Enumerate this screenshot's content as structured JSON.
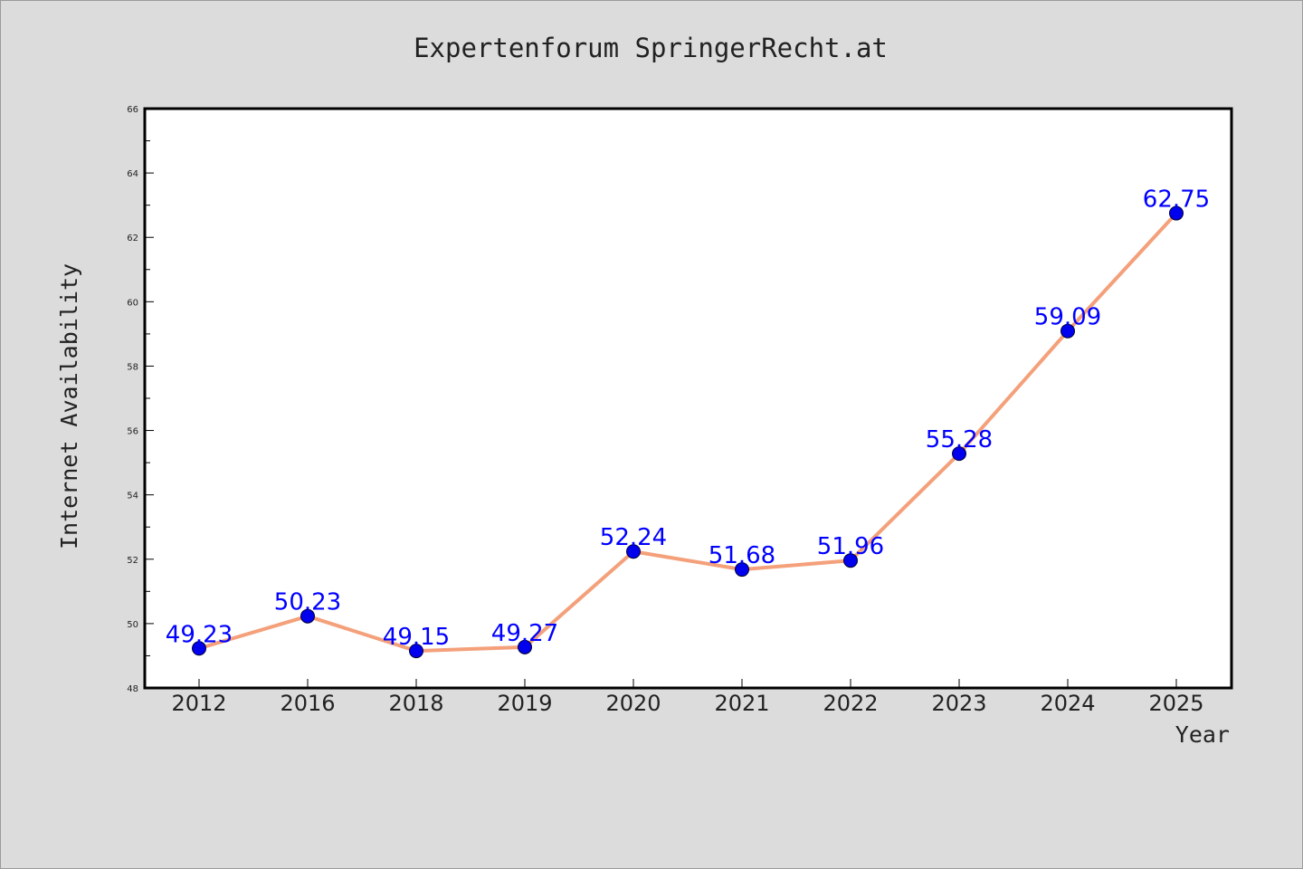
{
  "chart_data": {
    "type": "line",
    "title": "Expertenforum SpringerRecht.at",
    "xlabel": "Year",
    "ylabel": "Internet Availability",
    "categories": [
      "2012",
      "2016",
      "2018",
      "2019",
      "2020",
      "2021",
      "2022",
      "2023",
      "2024",
      "2025"
    ],
    "series": [
      {
        "values": [
          49.23,
          50.23,
          49.15,
          49.27,
          52.24,
          51.68,
          51.96,
          55.28,
          59.09,
          62.75
        ],
        "labels": [
          "49.23",
          "50.23",
          "49.15",
          "49.27",
          "52.24",
          "51.68",
          "51.96",
          "55.28",
          "59.09",
          "62.75"
        ],
        "line_color": "#f4a07a",
        "marker_color": "#0000ee"
      }
    ],
    "ylim": [
      48,
      66
    ],
    "yticks": [
      "48",
      "50",
      "52",
      "54",
      "56",
      "58",
      "60",
      "62",
      "64",
      "66"
    ],
    "label_color": "#0000ff",
    "grid": false,
    "legend": "none"
  }
}
